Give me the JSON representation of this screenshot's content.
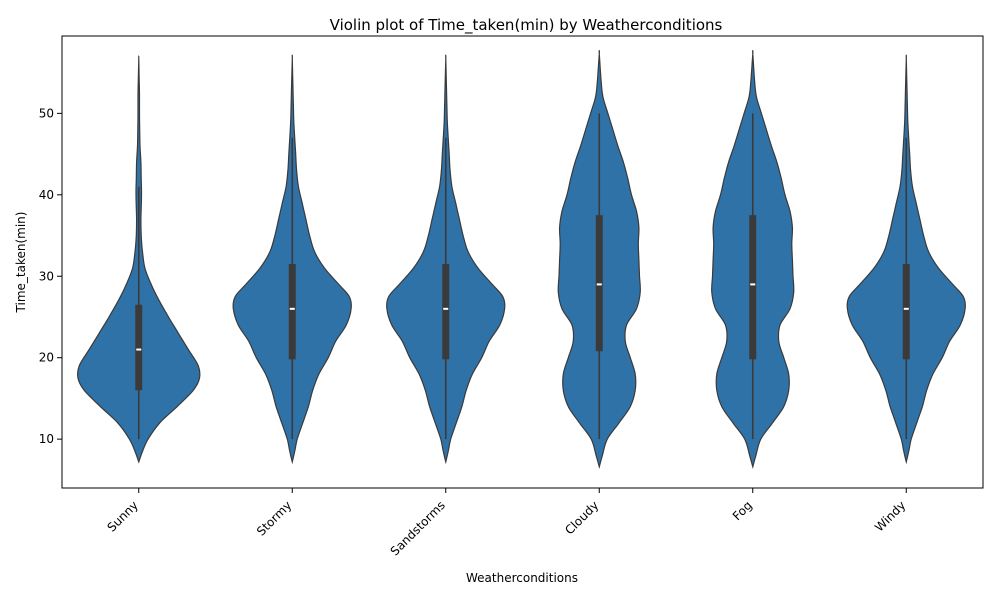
{
  "chart_data": {
    "type": "violin",
    "title": "Violin plot of Time_taken(min) by Weatherconditions",
    "xlabel": "Weatherconditions",
    "ylabel": "Time_taken(min)",
    "ylim": [
      4,
      59.5
    ],
    "yticks": [
      10,
      20,
      30,
      40,
      50
    ],
    "grid": false,
    "violin_color": "#2f72a8",
    "categories": [
      "Sunny",
      "Stormy",
      "Sandstorms",
      "Cloudy",
      "Fog",
      "Windy"
    ],
    "series": [
      {
        "category": "Sunny",
        "min": 10,
        "q1": 16,
        "median": 21,
        "q3": 26.5,
        "max": 41,
        "density": [
          [
            7.2,
            0
          ],
          [
            8.5,
            0.06
          ],
          [
            10,
            0.15
          ],
          [
            12,
            0.34
          ],
          [
            14,
            0.62
          ],
          [
            16,
            0.88
          ],
          [
            17.5,
            0.98
          ],
          [
            19,
            0.96
          ],
          [
            21,
            0.8
          ],
          [
            23,
            0.64
          ],
          [
            25,
            0.48
          ],
          [
            27,
            0.33
          ],
          [
            29,
            0.2
          ],
          [
            31,
            0.1
          ],
          [
            33,
            0.06
          ],
          [
            35,
            0.04
          ],
          [
            37,
            0.035
          ],
          [
            40,
            0.045
          ],
          [
            42,
            0.04
          ],
          [
            44,
            0.035
          ],
          [
            46,
            0.02
          ],
          [
            48,
            0.015
          ],
          [
            50,
            0.012
          ],
          [
            52,
            0.012
          ],
          [
            54,
            0.008
          ],
          [
            56.7,
            0
          ]
        ]
      },
      {
        "category": "Stormy",
        "min": 10,
        "q1": 19.8,
        "median": 26,
        "q3": 31.5,
        "max": 47,
        "density": [
          [
            7.2,
            0
          ],
          [
            8.5,
            0.04
          ],
          [
            10,
            0.08
          ],
          [
            12,
            0.17
          ],
          [
            14,
            0.26
          ],
          [
            16,
            0.33
          ],
          [
            18,
            0.43
          ],
          [
            20,
            0.58
          ],
          [
            22,
            0.7
          ],
          [
            24,
            0.87
          ],
          [
            26,
            0.95
          ],
          [
            27.5,
            0.92
          ],
          [
            29,
            0.75
          ],
          [
            31,
            0.52
          ],
          [
            33,
            0.36
          ],
          [
            35,
            0.28
          ],
          [
            37,
            0.22
          ],
          [
            39,
            0.16
          ],
          [
            41,
            0.1
          ],
          [
            43,
            0.07
          ],
          [
            45,
            0.055
          ],
          [
            47,
            0.04
          ],
          [
            49,
            0.025
          ],
          [
            51,
            0.018
          ],
          [
            53,
            0.012
          ],
          [
            56.7,
            0
          ]
        ]
      },
      {
        "category": "Sandstorms",
        "min": 10,
        "q1": 19.8,
        "median": 26,
        "q3": 31.5,
        "max": 47,
        "density": [
          [
            7.2,
            0
          ],
          [
            8.5,
            0.04
          ],
          [
            10,
            0.08
          ],
          [
            12,
            0.17
          ],
          [
            14,
            0.26
          ],
          [
            16,
            0.33
          ],
          [
            18,
            0.43
          ],
          [
            20,
            0.58
          ],
          [
            22,
            0.7
          ],
          [
            24,
            0.87
          ],
          [
            26,
            0.95
          ],
          [
            27.5,
            0.92
          ],
          [
            29,
            0.75
          ],
          [
            31,
            0.52
          ],
          [
            33,
            0.36
          ],
          [
            35,
            0.28
          ],
          [
            37,
            0.22
          ],
          [
            39,
            0.16
          ],
          [
            41,
            0.1
          ],
          [
            43,
            0.07
          ],
          [
            45,
            0.055
          ],
          [
            47,
            0.04
          ],
          [
            49,
            0.025
          ],
          [
            51,
            0.018
          ],
          [
            53,
            0.012
          ],
          [
            56.7,
            0
          ]
        ]
      },
      {
        "category": "Cloudy",
        "min": 10,
        "q1": 20.8,
        "median": 29,
        "q3": 37.5,
        "max": 50,
        "density": [
          [
            6.6,
            0
          ],
          [
            8,
            0.05
          ],
          [
            10,
            0.13
          ],
          [
            12,
            0.32
          ],
          [
            14,
            0.5
          ],
          [
            16,
            0.58
          ],
          [
            18,
            0.58
          ],
          [
            20,
            0.5
          ],
          [
            22,
            0.42
          ],
          [
            24,
            0.44
          ],
          [
            26,
            0.6
          ],
          [
            28,
            0.66
          ],
          [
            30,
            0.65
          ],
          [
            32,
            0.64
          ],
          [
            34,
            0.63
          ],
          [
            36,
            0.64
          ],
          [
            38,
            0.6
          ],
          [
            40,
            0.52
          ],
          [
            42,
            0.46
          ],
          [
            44,
            0.39
          ],
          [
            46,
            0.3
          ],
          [
            48,
            0.22
          ],
          [
            50,
            0.14
          ],
          [
            52,
            0.06
          ],
          [
            54,
            0.03
          ],
          [
            57.3,
            0
          ]
        ]
      },
      {
        "category": "Fog",
        "min": 10,
        "q1": 19.8,
        "median": 29,
        "q3": 37.5,
        "max": 50,
        "density": [
          [
            6.6,
            0
          ],
          [
            8,
            0.05
          ],
          [
            10,
            0.13
          ],
          [
            12,
            0.32
          ],
          [
            14,
            0.5
          ],
          [
            16,
            0.58
          ],
          [
            18,
            0.58
          ],
          [
            20,
            0.5
          ],
          [
            22,
            0.42
          ],
          [
            24,
            0.44
          ],
          [
            26,
            0.6
          ],
          [
            28,
            0.66
          ],
          [
            30,
            0.65
          ],
          [
            32,
            0.64
          ],
          [
            34,
            0.63
          ],
          [
            36,
            0.64
          ],
          [
            38,
            0.6
          ],
          [
            40,
            0.52
          ],
          [
            42,
            0.46
          ],
          [
            44,
            0.39
          ],
          [
            46,
            0.3
          ],
          [
            48,
            0.22
          ],
          [
            50,
            0.14
          ],
          [
            52,
            0.06
          ],
          [
            54,
            0.03
          ],
          [
            57.3,
            0
          ]
        ]
      },
      {
        "category": "Windy",
        "min": 10,
        "q1": 19.8,
        "median": 26,
        "q3": 31.5,
        "max": 47,
        "density": [
          [
            7.2,
            0
          ],
          [
            8.5,
            0.04
          ],
          [
            10,
            0.08
          ],
          [
            12,
            0.17
          ],
          [
            14,
            0.26
          ],
          [
            16,
            0.33
          ],
          [
            18,
            0.43
          ],
          [
            20,
            0.58
          ],
          [
            22,
            0.7
          ],
          [
            24,
            0.87
          ],
          [
            26,
            0.95
          ],
          [
            27.5,
            0.92
          ],
          [
            29,
            0.75
          ],
          [
            31,
            0.52
          ],
          [
            33,
            0.36
          ],
          [
            35,
            0.28
          ],
          [
            37,
            0.22
          ],
          [
            39,
            0.16
          ],
          [
            41,
            0.1
          ],
          [
            43,
            0.07
          ],
          [
            45,
            0.055
          ],
          [
            47,
            0.04
          ],
          [
            49,
            0.025
          ],
          [
            51,
            0.018
          ],
          [
            53,
            0.012
          ],
          [
            56.7,
            0
          ]
        ]
      }
    ]
  }
}
